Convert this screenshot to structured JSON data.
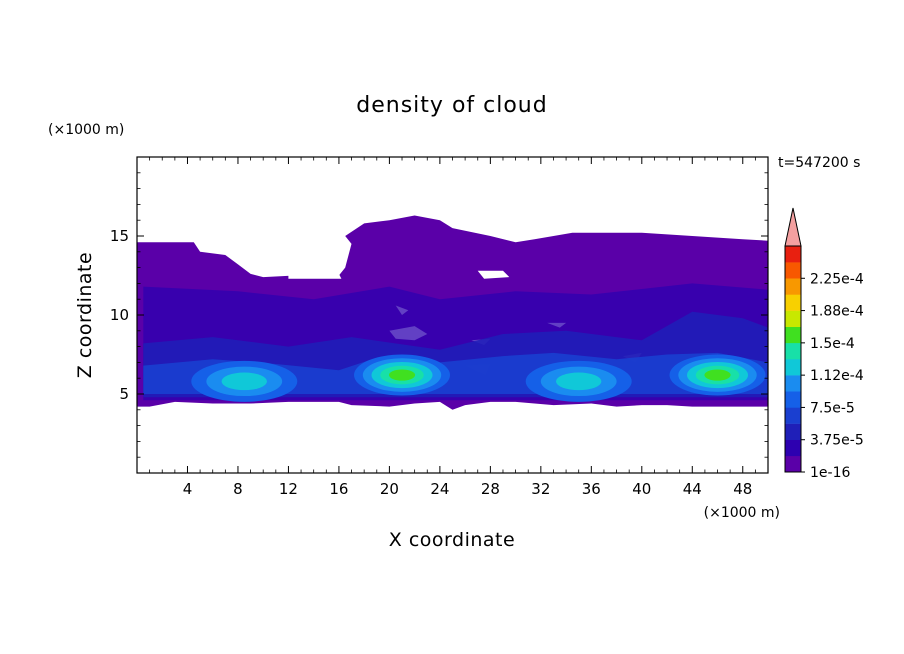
{
  "chart_data": {
    "type": "heatmap",
    "title": "density of cloud",
    "xlabel": "X coordinate",
    "ylabel": "Z coordinate",
    "x_unit": "(×1000 m)",
    "y_unit": "(×1000 m)",
    "time_label": "t=547200 s",
    "xlim": [
      0,
      50
    ],
    "ylim": [
      0,
      20
    ],
    "x_ticks": [
      4,
      8,
      12,
      16,
      20,
      24,
      28,
      32,
      36,
      40,
      44,
      48
    ],
    "y_ticks": [
      5,
      10,
      15
    ],
    "colorbar": {
      "levels": [
        1e-16,
        1.875e-05,
        3.75e-05,
        5.625e-05,
        7.5e-05,
        9.375e-05,
        0.0001125,
        0.00013125,
        0.00015,
        0.00016875,
        0.0001875,
        0.00020625,
        0.000225,
        0.00024375
      ],
      "tick_labels": [
        "1e-16",
        "3.75e-5",
        "7.5e-5",
        "1.12e-4",
        "1.5e-4",
        "1.88e-4",
        "2.25e-4"
      ],
      "colors": [
        "#5a00a8",
        "#2d00b0",
        "#1f1fb8",
        "#1a3fd0",
        "#1560e8",
        "#1a8cf0",
        "#10c8d8",
        "#18e0a8",
        "#40e020",
        "#c8e800",
        "#f8d000",
        "#f89800",
        "#f85800",
        "#e82010"
      ],
      "extend_color": "#f4a0a0"
    },
    "cloud_layers": [
      {
        "level": 0,
        "x_range": [
          0,
          50
        ],
        "z_range": [
          4.2,
          16.3
        ]
      },
      {
        "level": 1,
        "x_range": [
          0.5,
          50
        ],
        "z_range": [
          4.3,
          12
        ]
      },
      {
        "level": 3,
        "x_range": [
          0.5,
          50
        ],
        "z_range": [
          4.5,
          9.5
        ]
      },
      {
        "level": 5,
        "x_range": [
          0.5,
          50
        ],
        "z_range": [
          4.8,
          7.6
        ]
      }
    ],
    "cores": [
      {
        "x": 8.5,
        "z": 5.9,
        "peak_level": 6
      },
      {
        "x": 21,
        "z": 6.3,
        "peak_level": 8
      },
      {
        "x": 35,
        "z": 5.9,
        "peak_level": 6
      },
      {
        "x": 46,
        "z": 6.3,
        "peak_level": 8
      }
    ]
  }
}
